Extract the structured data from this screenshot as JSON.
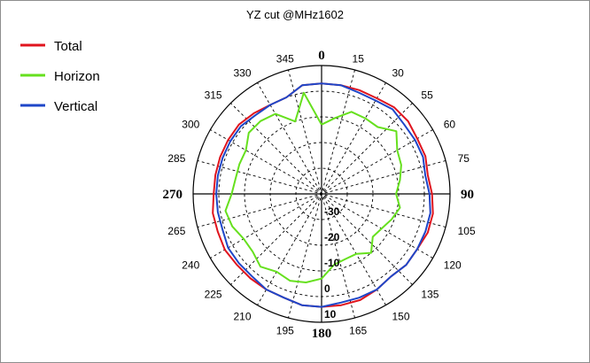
{
  "chart_data": {
    "type": "polar",
    "title": "YZ cut @MHz1602",
    "angle_labels": [
      "0",
      "15",
      "30",
      "55",
      "60",
      "75",
      "90",
      "105",
      "120",
      "135",
      "150",
      "165",
      "180",
      "195",
      "210",
      "225",
      "240",
      "265",
      "270",
      "285",
      "300",
      "315",
      "330",
      "345"
    ],
    "major_angles": [
      "0",
      "90",
      "180",
      "270"
    ],
    "radial_labels": [
      "-30",
      "-20",
      "-10",
      "0",
      "10"
    ],
    "r_range": [
      -40,
      10
    ],
    "angle_step_deg": 15,
    "grid": true,
    "legend_position": "top-left",
    "series": [
      {
        "name": "Total",
        "color": "#e0141e",
        "values": [
          3,
          3,
          3,
          3,
          4,
          4,
          3,
          3,
          2,
          3,
          4,
          4,
          3,
          3,
          2,
          3,
          4,
          4,
          4,
          4,
          3,
          3,
          3,
          3,
          3.5,
          3,
          3,
          2,
          2,
          2,
          2,
          2,
          1,
          0,
          0,
          3
        ]
      },
      {
        "name": "Horizon",
        "color": "#66e01e",
        "values": [
          -13,
          -10,
          -6,
          -6,
          -6,
          -2,
          -6,
          -7,
          -9,
          -11,
          -9,
          -11,
          -13,
          -14,
          -10,
          -13,
          -13,
          -12,
          -7,
          -5,
          -4,
          -5,
          -3,
          -5,
          -5,
          -3,
          -2,
          -5,
          -6,
          -6,
          -6,
          -3,
          -3,
          -4,
          -10,
          0
        ]
      },
      {
        "name": "Vertical",
        "color": "#1e46c8",
        "values": [
          3,
          3,
          2,
          2,
          3,
          2,
          2,
          2,
          1,
          2,
          3,
          3,
          3,
          3,
          2,
          3,
          3,
          3,
          4,
          4,
          3,
          3,
          2,
          2,
          2,
          1,
          1,
          1,
          1,
          1,
          1,
          1,
          0,
          0,
          0,
          3
        ]
      }
    ]
  }
}
